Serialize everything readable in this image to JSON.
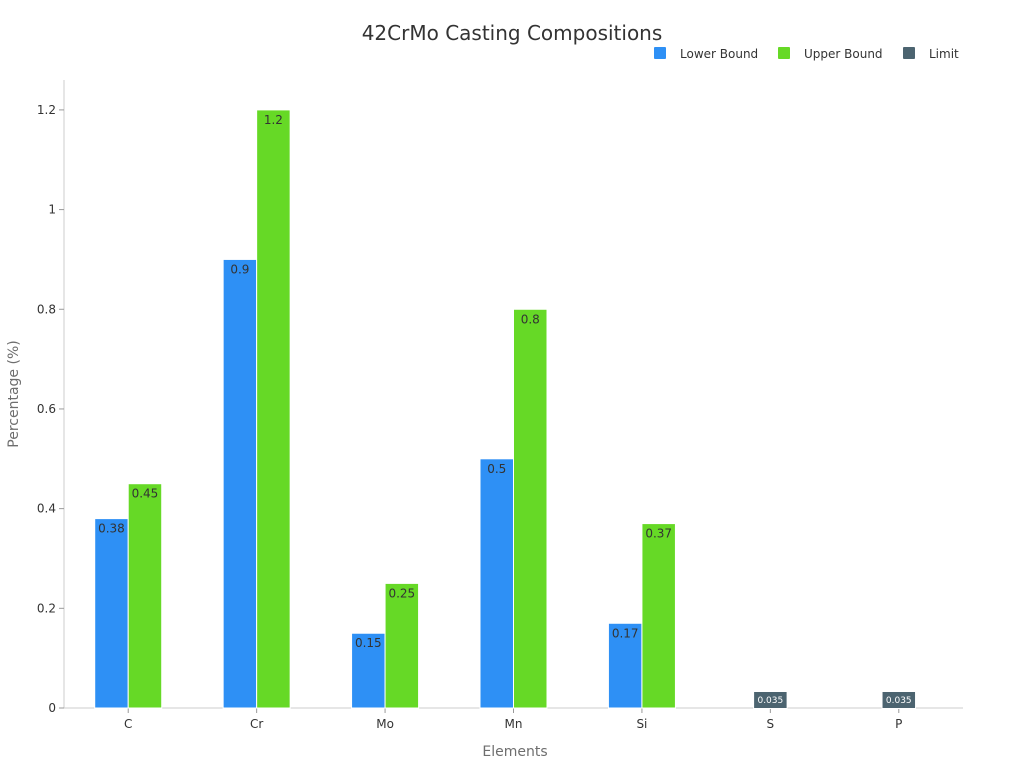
{
  "chart_data": {
    "type": "bar",
    "title": "42CrMo Casting Compositions",
    "xlabel": "Elements",
    "ylabel": "Percentage (%)",
    "ylim": [
      0,
      1.26
    ],
    "yticks": [
      0,
      0.2,
      0.4,
      0.6,
      0.8,
      1,
      1.2
    ],
    "ytick_labels": [
      "0",
      "0.2",
      "0.4",
      "0.6",
      "0.8",
      "1",
      "1.2"
    ],
    "categories": [
      "C",
      "Cr",
      "Mo",
      "Mn",
      "Si",
      "S",
      "P"
    ],
    "series": [
      {
        "name": "Lower Bound",
        "color": "#2e90f5",
        "values": [
          0.38,
          0.9,
          0.15,
          0.5,
          0.17,
          null,
          null
        ],
        "labels": [
          "0.38",
          "0.9",
          "0.15",
          "0.5",
          "0.17",
          null,
          null
        ]
      },
      {
        "name": "Upper Bound",
        "color": "#66d926",
        "values": [
          0.45,
          1.2,
          0.25,
          0.8,
          0.37,
          null,
          null
        ],
        "labels": [
          "0.45",
          "1.2",
          "0.25",
          "0.8",
          "0.37",
          null,
          null
        ]
      },
      {
        "name": "Limit",
        "color": "#4c6470",
        "values": [
          null,
          null,
          null,
          null,
          null,
          0.035,
          0.035
        ],
        "labels": [
          null,
          null,
          null,
          null,
          null,
          "0.035",
          "0.035"
        ]
      }
    ],
    "legend_position": "top-right",
    "grid": false
  }
}
